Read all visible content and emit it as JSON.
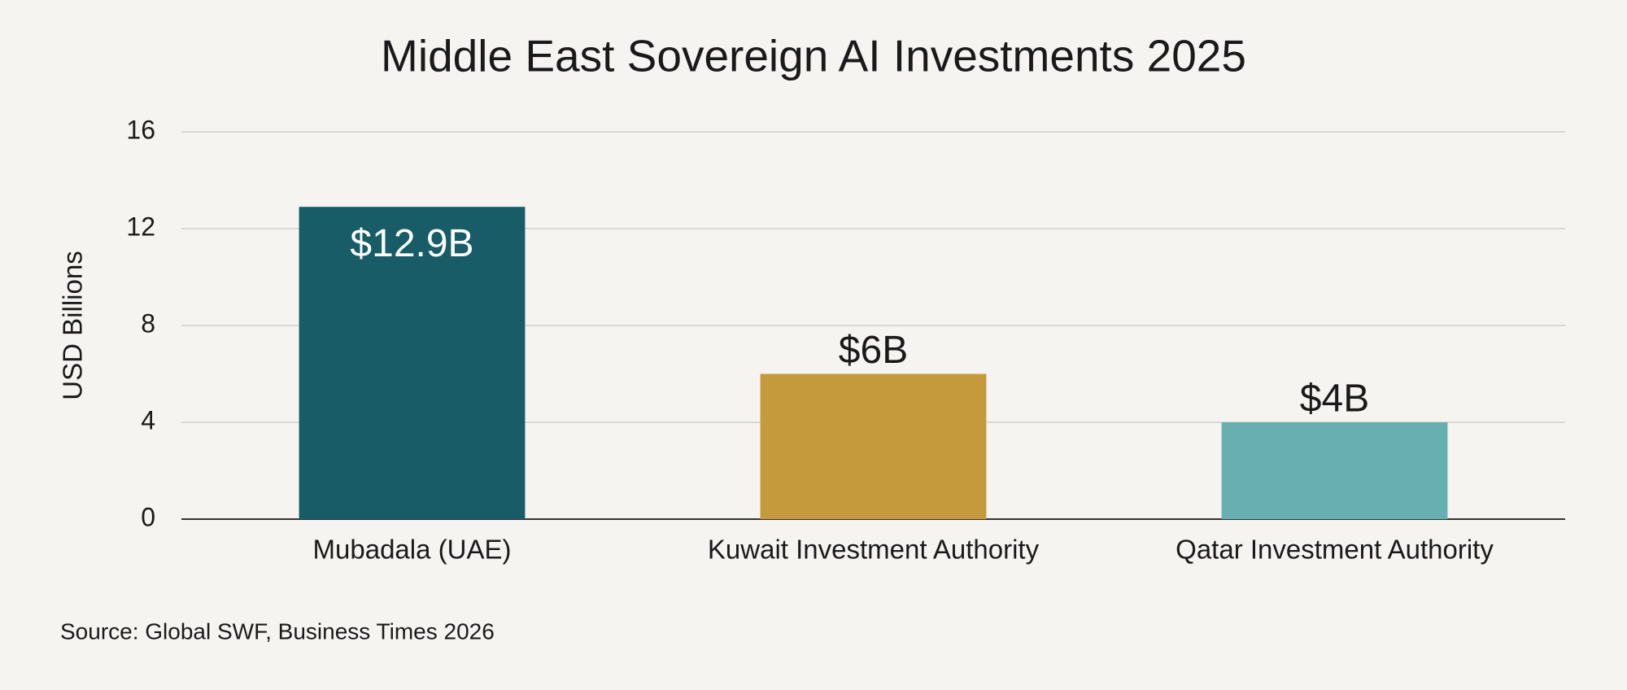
{
  "chart_data": {
    "type": "bar",
    "title": "Middle East Sovereign AI Investments 2025",
    "y_label": "USD Billions",
    "categories": [
      "Mubadala (UAE)",
      "Kuwait Investment Authority",
      "Qatar Investment Authority"
    ],
    "values": [
      12.9,
      6,
      4
    ],
    "value_labels": [
      "$12.9B",
      "$6B",
      "$4B"
    ],
    "colors": [
      "#175c66",
      "#c49a3c",
      "#67afb0"
    ],
    "ylim": [
      0,
      16
    ],
    "yticks": [
      0,
      4,
      8,
      12,
      16
    ],
    "grid": true,
    "source": "Source: Global SWF, Business Times 2026"
  }
}
